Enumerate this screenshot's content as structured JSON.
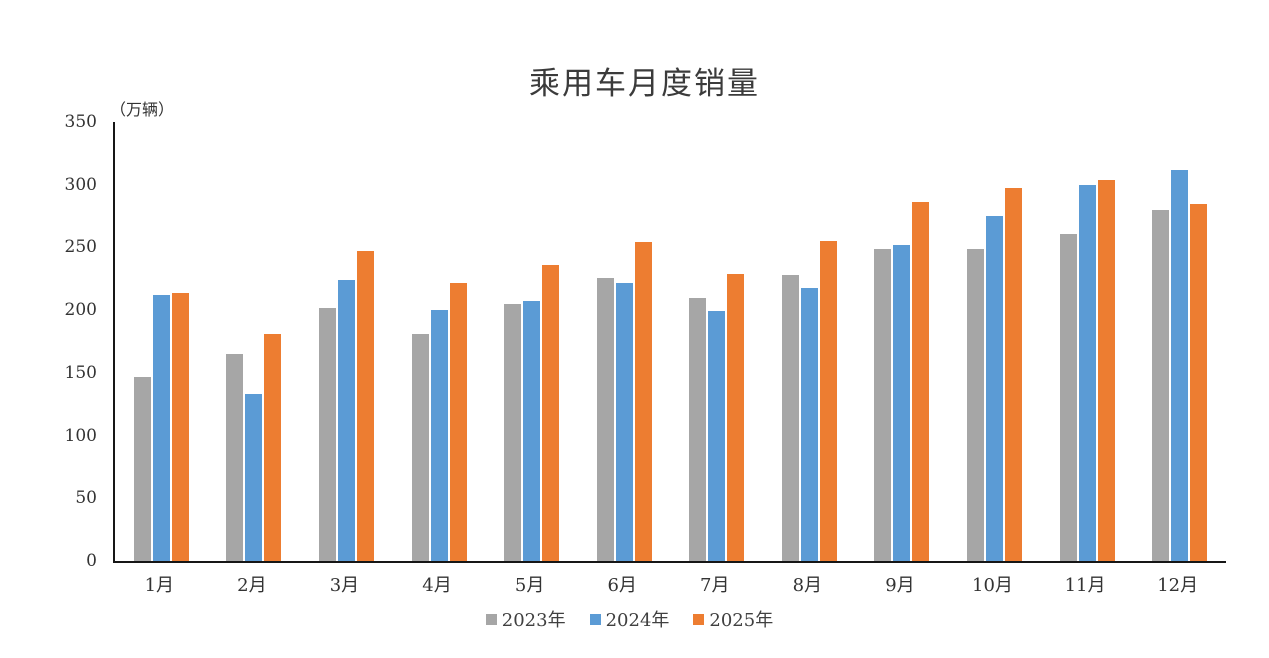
{
  "chart_data": {
    "type": "bar",
    "title": "乘用车月度销量",
    "unit_label": "（万辆）",
    "categories": [
      "1月",
      "2月",
      "3月",
      "4月",
      "5月",
      "6月",
      "7月",
      "8月",
      "9月",
      "10月",
      "11月",
      "12月"
    ],
    "series": [
      {
        "name": "2023年",
        "color": "#a6a6a6",
        "values": [
          147,
          165,
          202,
          181,
          205,
          226,
          210,
          228,
          249,
          249,
          261,
          280
        ]
      },
      {
        "name": "2024年",
        "color": "#5b9bd5",
        "values": [
          212,
          133,
          224,
          200,
          207,
          222,
          199,
          218,
          252,
          275,
          300,
          312
        ]
      },
      {
        "name": "2025年",
        "color": "#ed7d31",
        "values": [
          214,
          181,
          247,
          222,
          236,
          254,
          229,
          255,
          286,
          297,
          304,
          285
        ]
      }
    ],
    "ylim": [
      0,
      350
    ],
    "yticks": [
      0,
      50,
      100,
      150,
      200,
      250,
      300,
      350
    ],
    "xlabel": "",
    "ylabel": "（万辆）",
    "grid": false,
    "legend_position": "bottom",
    "axis_color": "#161616",
    "text_color": "#333333"
  }
}
